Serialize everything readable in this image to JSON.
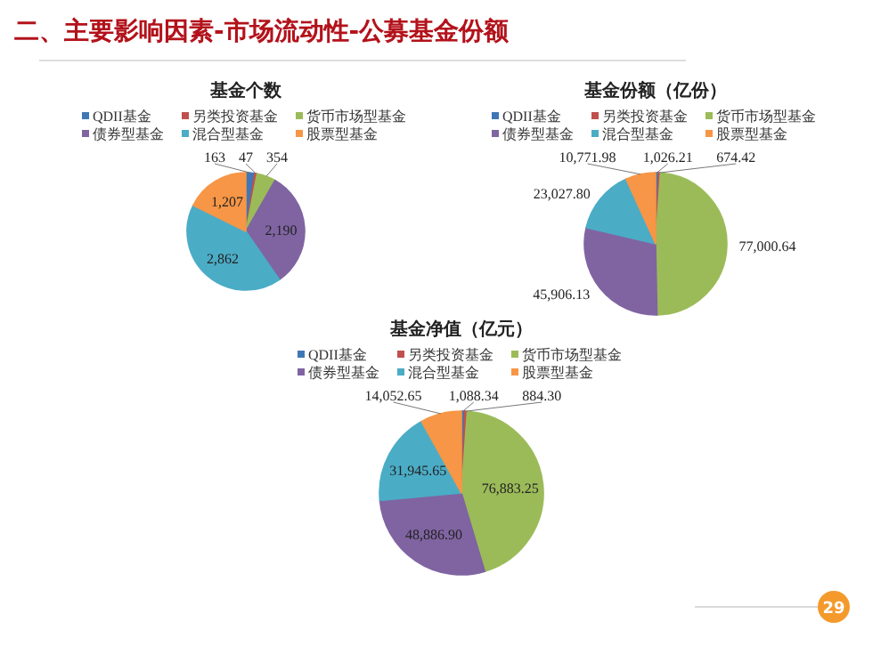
{
  "chart_data": [
    {
      "type": "pie",
      "title": "基金个数",
      "categories": [
        "QDII基金",
        "另类投资基金",
        "货币市场型基金",
        "债券型基金",
        "混合型基金",
        "股票型基金"
      ],
      "values": [
        163,
        47,
        354,
        2190,
        2862,
        1207
      ],
      "value_labels": [
        "163",
        "47",
        "354",
        "2,190",
        "2,862",
        "1,207"
      ],
      "colors": [
        "#3f77b6",
        "#c0504d",
        "#9bbb59",
        "#8064a2",
        "#4bacc6",
        "#f79646"
      ],
      "legend": "top",
      "annotations": [
        "二、主要影响因素-市场流动性-公募基金份额",
        "29"
      ]
    },
    {
      "type": "pie",
      "title": "基金份额（亿份）",
      "categories": [
        "QDII基金",
        "另类投资基金",
        "货币市场型基金",
        "债券型基金",
        "混合型基金",
        "股票型基金"
      ],
      "values": [
        1026.21,
        674.42,
        77000.64,
        45906.13,
        23027.8,
        10771.98
      ],
      "value_labels": [
        "1,026.21",
        "674.42",
        "77,000.64",
        "45,906.13",
        "23,027.80",
        "10,771.98"
      ],
      "colors": [
        "#3f77b6",
        "#c0504d",
        "#9bbb59",
        "#8064a2",
        "#4bacc6",
        "#f79646"
      ],
      "legend": "top"
    },
    {
      "type": "pie",
      "title": "基金净值（亿元）",
      "categories": [
        "QDII基金",
        "另类投资基金",
        "货币市场型基金",
        "债券型基金",
        "混合型基金",
        "股票型基金"
      ],
      "values": [
        1088.34,
        884.3,
        76883.25,
        48886.9,
        31945.65,
        14052.65
      ],
      "value_labels": [
        "1,088.34",
        "884.30",
        "76,883.25",
        "48,886.90",
        "31,945.65",
        "14,052.65"
      ],
      "colors": [
        "#3f77b6",
        "#c0504d",
        "#9bbb59",
        "#8064a2",
        "#4bacc6",
        "#f79646"
      ],
      "legend": "top"
    }
  ]
}
